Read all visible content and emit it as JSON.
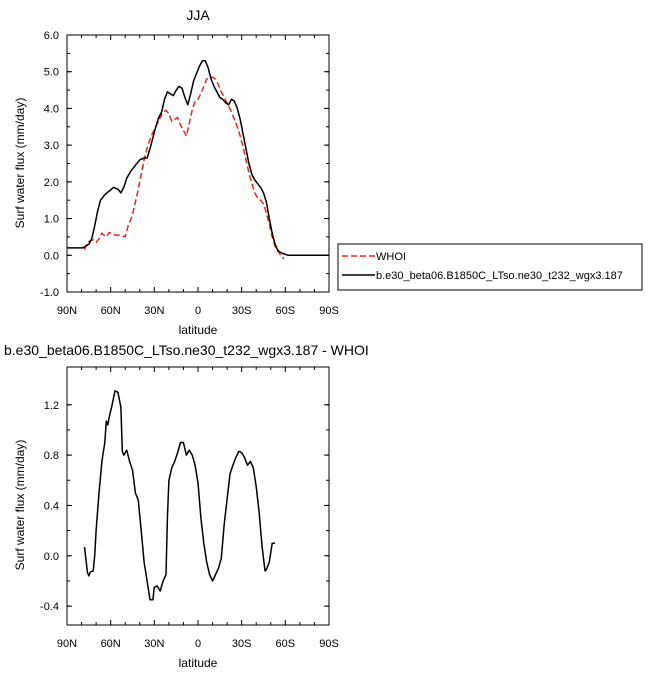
{
  "chart_data": [
    {
      "type": "line",
      "title": "JJA",
      "xlabel": "latitude",
      "ylabel": "Surf water flux (mm/day)",
      "xlim": [
        90,
        -90
      ],
      "ylim": [
        -1.0,
        6.0
      ],
      "x_ticks": [
        {
          "value": 90,
          "label": "90N"
        },
        {
          "value": 60,
          "label": "60N"
        },
        {
          "value": 30,
          "label": "30N"
        },
        {
          "value": 0,
          "label": "0"
        },
        {
          "value": -30,
          "label": "30S"
        },
        {
          "value": -60,
          "label": "60S"
        },
        {
          "value": -90,
          "label": "90S"
        }
      ],
      "y_ticks": [
        {
          "value": 6.0,
          "label": "6.0"
        },
        {
          "value": 5.0,
          "label": "5.0"
        },
        {
          "value": 4.0,
          "label": "4.0"
        },
        {
          "value": 3.0,
          "label": "3.0"
        },
        {
          "value": 2.0,
          "label": "2.0"
        },
        {
          "value": 1.0,
          "label": "1.0"
        },
        {
          "value": 0.0,
          "label": "0.0"
        },
        {
          "value": -1.0,
          "label": "-1.0"
        }
      ],
      "legend": "right",
      "series": [
        {
          "name": "WHOI",
          "color": "#e8251f",
          "dash": "dashed",
          "points": [
            [
              78,
              0.15
            ],
            [
              76,
              0.35
            ],
            [
              74,
              0.4
            ],
            [
              72,
              0.42
            ],
            [
              70,
              0.35
            ],
            [
              68,
              0.45
            ],
            [
              66,
              0.6
            ],
            [
              63,
              0.5
            ],
            [
              61,
              0.62
            ],
            [
              57,
              0.55
            ],
            [
              54,
              0.55
            ],
            [
              50,
              0.5
            ],
            [
              48,
              0.8
            ],
            [
              45,
              1.1
            ],
            [
              43,
              1.45
            ],
            [
              41,
              1.8
            ],
            [
              39,
              2.2
            ],
            [
              37,
              2.6
            ],
            [
              34,
              3.05
            ],
            [
              31,
              3.35
            ],
            [
              29,
              3.5
            ],
            [
              26,
              3.75
            ],
            [
              24,
              3.9
            ],
            [
              22,
              3.95
            ],
            [
              20,
              3.85
            ],
            [
              18,
              3.65
            ],
            [
              16,
              3.7
            ],
            [
              14,
              3.75
            ],
            [
              12,
              3.55
            ],
            [
              10,
              3.4
            ],
            [
              8,
              3.25
            ],
            [
              6,
              3.6
            ],
            [
              4,
              3.95
            ],
            [
              2,
              4.2
            ],
            [
              0,
              4.25
            ],
            [
              -2,
              4.4
            ],
            [
              -4,
              4.6
            ],
            [
              -6,
              4.8
            ],
            [
              -8,
              4.85
            ],
            [
              -10,
              4.85
            ],
            [
              -12,
              4.8
            ],
            [
              -14,
              4.65
            ],
            [
              -16,
              4.45
            ],
            [
              -18,
              4.3
            ],
            [
              -20,
              4.15
            ],
            [
              -23,
              3.9
            ],
            [
              -25,
              3.7
            ],
            [
              -27,
              3.5
            ],
            [
              -29,
              3.25
            ],
            [
              -31,
              2.95
            ],
            [
              -33,
              2.6
            ],
            [
              -35,
              2.25
            ],
            [
              -37,
              1.95
            ],
            [
              -39,
              1.7
            ],
            [
              -41,
              1.55
            ],
            [
              -43,
              1.5
            ],
            [
              -45,
              1.4
            ],
            [
              -47,
              1.15
            ],
            [
              -49,
              0.85
            ],
            [
              -51,
              0.5
            ],
            [
              -53,
              0.25
            ],
            [
              -55,
              0.1
            ],
            [
              -57,
              0.0
            ],
            [
              -59,
              -0.1
            ]
          ]
        },
        {
          "name": "b.e30_beta06.B1850C_LTso.ne30_t232_wgx3.187",
          "color": "#000000",
          "dash": "solid",
          "points": [
            [
              90,
              0.2
            ],
            [
              85,
              0.2
            ],
            [
              82,
              0.2
            ],
            [
              79,
              0.2
            ],
            [
              77,
              0.25
            ],
            [
              75,
              0.3
            ],
            [
              73,
              0.45
            ],
            [
              71,
              0.8
            ],
            [
              69,
              1.2
            ],
            [
              67,
              1.5
            ],
            [
              64,
              1.65
            ],
            [
              61,
              1.75
            ],
            [
              58,
              1.85
            ],
            [
              55,
              1.8
            ],
            [
              53,
              1.7
            ],
            [
              51,
              1.85
            ],
            [
              49,
              2.1
            ],
            [
              46,
              2.3
            ],
            [
              43,
              2.45
            ],
            [
              40,
              2.6
            ],
            [
              37,
              2.65
            ],
            [
              35,
              2.65
            ],
            [
              33,
              2.9
            ],
            [
              31,
              3.2
            ],
            [
              29,
              3.5
            ],
            [
              27,
              3.75
            ],
            [
              25,
              3.9
            ],
            [
              23,
              4.25
            ],
            [
              21,
              4.45
            ],
            [
              19,
              4.4
            ],
            [
              17,
              4.35
            ],
            [
              15,
              4.5
            ],
            [
              13,
              4.6
            ],
            [
              11,
              4.55
            ],
            [
              9,
              4.3
            ],
            [
              7,
              4.1
            ],
            [
              5,
              4.4
            ],
            [
              3,
              4.75
            ],
            [
              1,
              4.95
            ],
            [
              -1,
              5.15
            ],
            [
              -3,
              5.3
            ],
            [
              -5,
              5.3
            ],
            [
              -7,
              5.1
            ],
            [
              -9,
              4.8
            ],
            [
              -11,
              4.6
            ],
            [
              -13,
              4.45
            ],
            [
              -15,
              4.3
            ],
            [
              -17,
              4.25
            ],
            [
              -19,
              4.15
            ],
            [
              -21,
              4.1
            ],
            [
              -23,
              4.25
            ],
            [
              -25,
              4.2
            ],
            [
              -27,
              4.0
            ],
            [
              -29,
              3.7
            ],
            [
              -31,
              3.3
            ],
            [
              -33,
              2.9
            ],
            [
              -35,
              2.5
            ],
            [
              -37,
              2.2
            ],
            [
              -39,
              2.05
            ],
            [
              -41,
              1.95
            ],
            [
              -43,
              1.85
            ],
            [
              -45,
              1.7
            ],
            [
              -47,
              1.45
            ],
            [
              -49,
              1.0
            ],
            [
              -51,
              0.6
            ],
            [
              -53,
              0.3
            ],
            [
              -55,
              0.12
            ],
            [
              -58,
              0.05
            ],
            [
              -62,
              0.0
            ],
            [
              -70,
              0.0
            ],
            [
              -80,
              0.0
            ],
            [
              -90,
              0.0
            ]
          ]
        }
      ]
    },
    {
      "type": "line",
      "title": "b.e30_beta06.B1850C_LTso.ne30_t232_wgx3.187 - WHOI",
      "xlabel": "latitude",
      "ylabel": "Surf water flux (mm/day)",
      "xlim": [
        90,
        -90
      ],
      "ylim": [
        -0.55,
        1.5
      ],
      "x_ticks": [
        {
          "value": 90,
          "label": "90N"
        },
        {
          "value": 60,
          "label": "60N"
        },
        {
          "value": 30,
          "label": "30N"
        },
        {
          "value": 0,
          "label": "0"
        },
        {
          "value": -30,
          "label": "30S"
        },
        {
          "value": -60,
          "label": "60S"
        },
        {
          "value": -90,
          "label": "90S"
        }
      ],
      "y_ticks": [
        {
          "value": 1.2,
          "label": "1.2"
        },
        {
          "value": 0.8,
          "label": "0.8"
        },
        {
          "value": 0.4,
          "label": "0.4"
        },
        {
          "value": 0.0,
          "label": "0.0"
        },
        {
          "value": -0.4,
          "label": "-0.4"
        }
      ],
      "series": [
        {
          "name": "",
          "color": "#000000",
          "dash": "solid",
          "points": [
            [
              78,
              0.07
            ],
            [
              76,
              -0.13
            ],
            [
              75,
              -0.16
            ],
            [
              74,
              -0.13
            ],
            [
              72,
              -0.12
            ],
            [
              71,
              0.0
            ],
            [
              70,
              0.2
            ],
            [
              68,
              0.5
            ],
            [
              66,
              0.75
            ],
            [
              64,
              0.9
            ],
            [
              63,
              1.07
            ],
            [
              62,
              1.04
            ],
            [
              61,
              1.1
            ],
            [
              59,
              1.2
            ],
            [
              57,
              1.31
            ],
            [
              55,
              1.3
            ],
            [
              53,
              1.18
            ],
            [
              52,
              0.83
            ],
            [
              51,
              0.8
            ],
            [
              49,
              0.84
            ],
            [
              47,
              0.75
            ],
            [
              45,
              0.68
            ],
            [
              43,
              0.5
            ],
            [
              41,
              0.44
            ],
            [
              39,
              0.2
            ],
            [
              37,
              -0.05
            ],
            [
              35,
              -0.2
            ],
            [
              33,
              -0.35
            ],
            [
              31,
              -0.35
            ],
            [
              30,
              -0.25
            ],
            [
              28,
              -0.24
            ],
            [
              26,
              -0.28
            ],
            [
              24,
              -0.2
            ],
            [
              22,
              -0.15
            ],
            [
              21,
              0.3
            ],
            [
              20,
              0.6
            ],
            [
              18,
              0.7
            ],
            [
              16,
              0.75
            ],
            [
              14,
              0.82
            ],
            [
              12,
              0.9
            ],
            [
              10,
              0.9
            ],
            [
              8,
              0.8
            ],
            [
              6,
              0.84
            ],
            [
              4,
              0.8
            ],
            [
              2,
              0.72
            ],
            [
              0,
              0.58
            ],
            [
              -2,
              0.3
            ],
            [
              -4,
              0.1
            ],
            [
              -6,
              -0.05
            ],
            [
              -8,
              -0.15
            ],
            [
              -10,
              -0.2
            ],
            [
              -12,
              -0.15
            ],
            [
              -14,
              -0.1
            ],
            [
              -16,
              -0.02
            ],
            [
              -18,
              0.25
            ],
            [
              -20,
              0.45
            ],
            [
              -22,
              0.65
            ],
            [
              -24,
              0.72
            ],
            [
              -26,
              0.78
            ],
            [
              -28,
              0.83
            ],
            [
              -30,
              0.82
            ],
            [
              -32,
              0.78
            ],
            [
              -34,
              0.72
            ],
            [
              -36,
              0.75
            ],
            [
              -38,
              0.7
            ],
            [
              -40,
              0.55
            ],
            [
              -42,
              0.35
            ],
            [
              -44,
              0.08
            ],
            [
              -46,
              -0.12
            ],
            [
              -47,
              -0.11
            ],
            [
              -49,
              -0.05
            ],
            [
              -51,
              0.1
            ],
            [
              -53,
              0.1
            ]
          ]
        }
      ]
    }
  ]
}
